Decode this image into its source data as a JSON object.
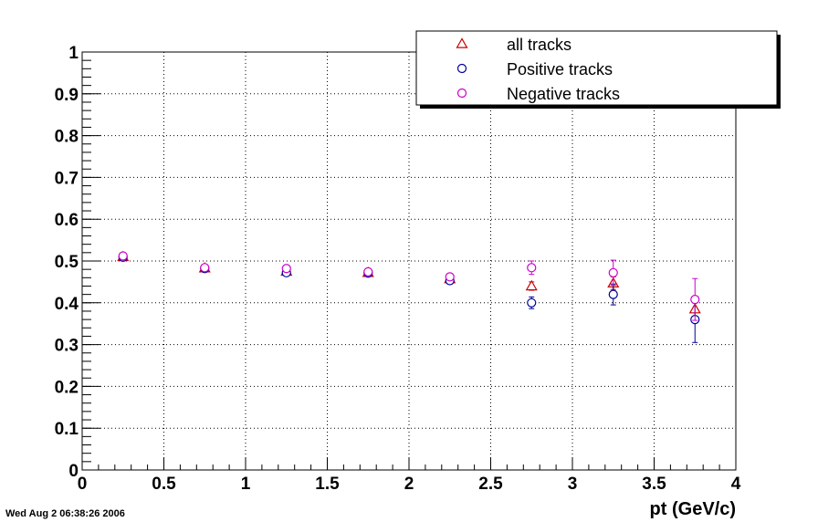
{
  "timestamp": "Wed Aug  2 06:38:26 2006",
  "chart_data": {
    "type": "scatter",
    "title": "",
    "xlabel": "pt (GeV/c)",
    "ylabel": "",
    "xlim": [
      0,
      4
    ],
    "ylim": [
      0,
      1
    ],
    "xticks": [
      "0",
      "0.5",
      "1",
      "1.5",
      "2",
      "2.5",
      "3",
      "3.5",
      "4"
    ],
    "yticks": [
      "0",
      "0.1",
      "0.2",
      "0.3",
      "0.4",
      "0.5",
      "0.6",
      "0.7",
      "0.8",
      "0.9",
      "1"
    ],
    "grid": true,
    "legend_position": "top-right",
    "series": [
      {
        "name": "all tracks",
        "marker": "triangle",
        "color": "#cc0000",
        "x": [
          0.25,
          0.75,
          1.25,
          1.75,
          2.25,
          2.75,
          3.25,
          3.75
        ],
        "y": [
          0.51,
          0.483,
          0.475,
          0.472,
          0.457,
          0.44,
          0.447,
          0.385
        ],
        "yerr": [
          0.004,
          0.004,
          0.004,
          0.005,
          0.006,
          0.01,
          0.015,
          0.025
        ]
      },
      {
        "name": "Positive tracks",
        "marker": "circle",
        "color": "#000099",
        "x": [
          0.25,
          0.75,
          1.25,
          1.75,
          2.25,
          2.75,
          3.25,
          3.75
        ],
        "y": [
          0.509,
          0.482,
          0.472,
          0.471,
          0.453,
          0.4,
          0.42,
          0.36
        ],
        "yerr": [
          0.005,
          0.005,
          0.005,
          0.006,
          0.008,
          0.014,
          0.025,
          0.055
        ]
      },
      {
        "name": "Negative tracks",
        "marker": "circle",
        "color": "#cc00cc",
        "x": [
          0.25,
          0.75,
          1.25,
          1.75,
          2.25,
          2.75,
          3.25,
          3.75
        ],
        "y": [
          0.512,
          0.484,
          0.482,
          0.474,
          0.462,
          0.484,
          0.472,
          0.408
        ],
        "yerr": [
          0.005,
          0.005,
          0.005,
          0.006,
          0.008,
          0.016,
          0.03,
          0.05
        ]
      }
    ]
  }
}
